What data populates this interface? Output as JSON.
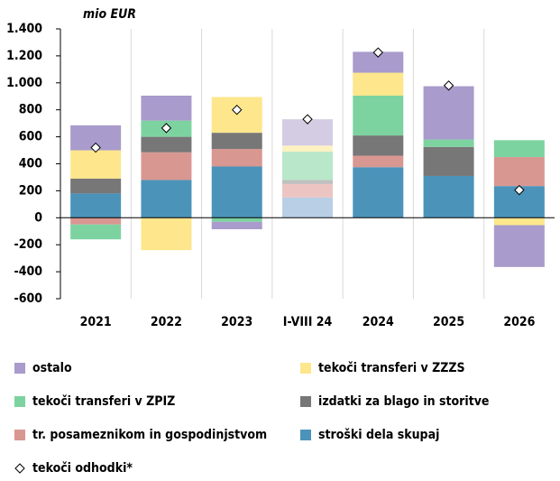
{
  "chart_data": {
    "type": "bar",
    "stacked": true,
    "y_unit_label": "mio EUR",
    "categories": [
      "2021",
      "2022",
      "2023",
      "I-VIII 24",
      "2024",
      "2025",
      "2026"
    ],
    "ylim": [
      -600,
      1400
    ],
    "yticks": [
      {
        "value": 1400,
        "label": "1.400"
      },
      {
        "value": 1200,
        "label": "1.200"
      },
      {
        "value": 1000,
        "label": "1.000"
      },
      800,
      600,
      400,
      200,
      0,
      -200,
      -400,
      -600
    ],
    "grid": {
      "vertical": true,
      "horizontal": false
    },
    "legend": "bottom",
    "series": [
      {
        "name": "stroški dela skupaj",
        "color": "#4b93b9",
        "colors": [
          "#4b93b9",
          "#4b93b9",
          "#4b93b9",
          "#b8cfe6",
          "#4b93b9",
          "#4b93b9",
          "#4b93b9"
        ],
        "values": [
          180,
          280,
          380,
          150,
          375,
          310,
          235
        ]
      },
      {
        "name": "tr. posameznikom in gospodinjstvom",
        "color": "#d99792",
        "colors": [
          "#d99792",
          "#d99792",
          "#d99792",
          "#ecc5c2",
          "#d99792",
          "#d99792",
          "#d99792"
        ],
        "values": [
          -50,
          205,
          130,
          100,
          85,
          0,
          215
        ]
      },
      {
        "name": "izdatki za blago in storitve",
        "color": "#777777",
        "colors": [
          "#777777",
          "#777777",
          "#777777",
          "#c0c0c0",
          "#777777",
          "#777777",
          "#777777"
        ],
        "values": [
          110,
          115,
          120,
          30,
          150,
          215,
          0
        ]
      },
      {
        "name": "tekoči transferi v ZPIZ",
        "color": "#7dd3a0",
        "colors": [
          "#7dd3a0",
          "#7dd3a0",
          "#7dd3a0",
          "#b8e8c9",
          "#7dd3a0",
          "#7dd3a0",
          "#7dd3a0"
        ],
        "values": [
          -110,
          120,
          -30,
          210,
          295,
          55,
          125
        ]
      },
      {
        "name": "tekoči transferi v ZZZS",
        "color": "#fde68c",
        "colors": [
          "#fde68c",
          "#fde68c",
          "#fde68c",
          "#fff2c2",
          "#fde68c",
          "#fde68c",
          "#fde68c"
        ],
        "values": [
          210,
          -240,
          265,
          45,
          170,
          0,
          -55
        ]
      },
      {
        "name": "ostalo",
        "color": "#a99bcb",
        "colors": [
          "#a99bcb",
          "#a99bcb",
          "#a99bcb",
          "#d4cce3",
          "#a99bcb",
          "#a99bcb",
          "#a99bcb"
        ],
        "values": [
          185,
          185,
          -55,
          195,
          155,
          395,
          -310
        ]
      }
    ],
    "markers": {
      "name": "tekoči odhodki*",
      "type": "scatter",
      "color": "#ffffff",
      "values": [
        520,
        665,
        800,
        730,
        1225,
        980,
        205
      ]
    }
  }
}
